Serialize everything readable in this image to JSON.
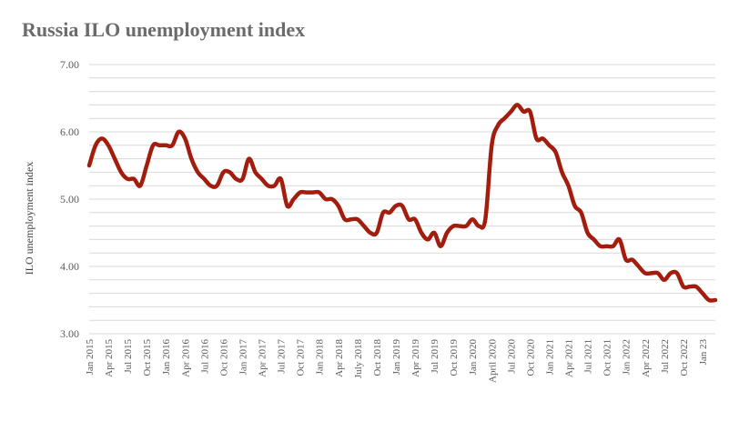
{
  "chart_data": {
    "type": "line",
    "title": "Russia ILO unemployment index",
    "ylabel": "ILO unemployment index",
    "xlabel": "",
    "ylim": [
      3.0,
      7.0
    ],
    "y_ticks": [
      "3.00",
      "4.00",
      "5.00",
      "6.00",
      "7.00"
    ],
    "grid": true,
    "x_tick_labels": [
      "Jan 2015",
      "Apr 2015",
      "Jul 2015",
      "Oct 2015",
      "Jan 2016",
      "Apr 2016",
      "Jul 2016",
      "Oct 2016",
      "Jan 2017",
      "Apr 2017",
      "Jul 2017",
      "Oct 2017",
      "Jan 2018",
      "Apr 2018",
      "July 2018",
      "Oct 2018",
      "Jan 2019",
      "Apr 2019",
      "Jul 2019",
      "Oct 2019",
      "Jan 2020",
      "April 2020",
      "Jul 2020",
      "Oct 2020",
      "Jan 2021",
      "Apr 2021",
      "Jul 2021",
      "Oct 2021",
      "Jan 2022",
      "Apr 2022",
      "Jul 2022",
      "Oct 2022",
      "Jan 23"
    ],
    "line_color": "#a31d0e",
    "x": [
      "2015-01",
      "2015-02",
      "2015-03",
      "2015-04",
      "2015-05",
      "2015-06",
      "2015-07",
      "2015-08",
      "2015-09",
      "2015-10",
      "2015-11",
      "2015-12",
      "2016-01",
      "2016-02",
      "2016-03",
      "2016-04",
      "2016-05",
      "2016-06",
      "2016-07",
      "2016-08",
      "2016-09",
      "2016-10",
      "2016-11",
      "2016-12",
      "2017-01",
      "2017-02",
      "2017-03",
      "2017-04",
      "2017-05",
      "2017-06",
      "2017-07",
      "2017-08",
      "2017-09",
      "2017-10",
      "2017-11",
      "2017-12",
      "2018-01",
      "2018-02",
      "2018-03",
      "2018-04",
      "2018-05",
      "2018-06",
      "2018-07",
      "2018-08",
      "2018-09",
      "2018-10",
      "2018-11",
      "2018-12",
      "2019-01",
      "2019-02",
      "2019-03",
      "2019-04",
      "2019-05",
      "2019-06",
      "2019-07",
      "2019-08",
      "2019-09",
      "2019-10",
      "2019-11",
      "2019-12",
      "2020-01",
      "2020-02",
      "2020-03",
      "2020-04",
      "2020-05",
      "2020-06",
      "2020-07",
      "2020-08",
      "2020-09",
      "2020-10",
      "2020-11",
      "2020-12",
      "2021-01",
      "2021-02",
      "2021-03",
      "2021-04",
      "2021-05",
      "2021-06",
      "2021-07",
      "2021-08",
      "2021-09",
      "2021-10",
      "2021-11",
      "2021-12",
      "2022-01",
      "2022-02",
      "2022-03",
      "2022-04",
      "2022-05",
      "2022-06",
      "2022-07",
      "2022-08",
      "2022-09",
      "2022-10",
      "2022-11",
      "2022-12",
      "2023-01",
      "2023-02",
      "2023-03"
    ],
    "values": [
      5.5,
      5.8,
      5.9,
      5.8,
      5.6,
      5.4,
      5.3,
      5.3,
      5.2,
      5.5,
      5.8,
      5.8,
      5.8,
      5.8,
      6.0,
      5.9,
      5.6,
      5.4,
      5.3,
      5.2,
      5.2,
      5.4,
      5.4,
      5.3,
      5.3,
      5.6,
      5.4,
      5.3,
      5.2,
      5.2,
      5.3,
      4.9,
      5.0,
      5.1,
      5.1,
      5.1,
      5.1,
      5.0,
      5.0,
      4.9,
      4.7,
      4.7,
      4.7,
      4.6,
      4.5,
      4.5,
      4.8,
      4.8,
      4.9,
      4.9,
      4.7,
      4.7,
      4.5,
      4.4,
      4.5,
      4.3,
      4.5,
      4.6,
      4.6,
      4.6,
      4.7,
      4.6,
      4.7,
      5.8,
      6.1,
      6.2,
      6.3,
      6.4,
      6.3,
      6.3,
      5.9,
      5.9,
      5.8,
      5.7,
      5.4,
      5.2,
      4.9,
      4.8,
      4.5,
      4.4,
      4.3,
      4.3,
      4.3,
      4.4,
      4.1,
      4.1,
      4.0,
      3.9,
      3.9,
      3.9,
      3.8,
      3.9,
      3.9,
      3.7,
      3.7,
      3.7,
      3.6,
      3.5,
      3.5
    ]
  }
}
